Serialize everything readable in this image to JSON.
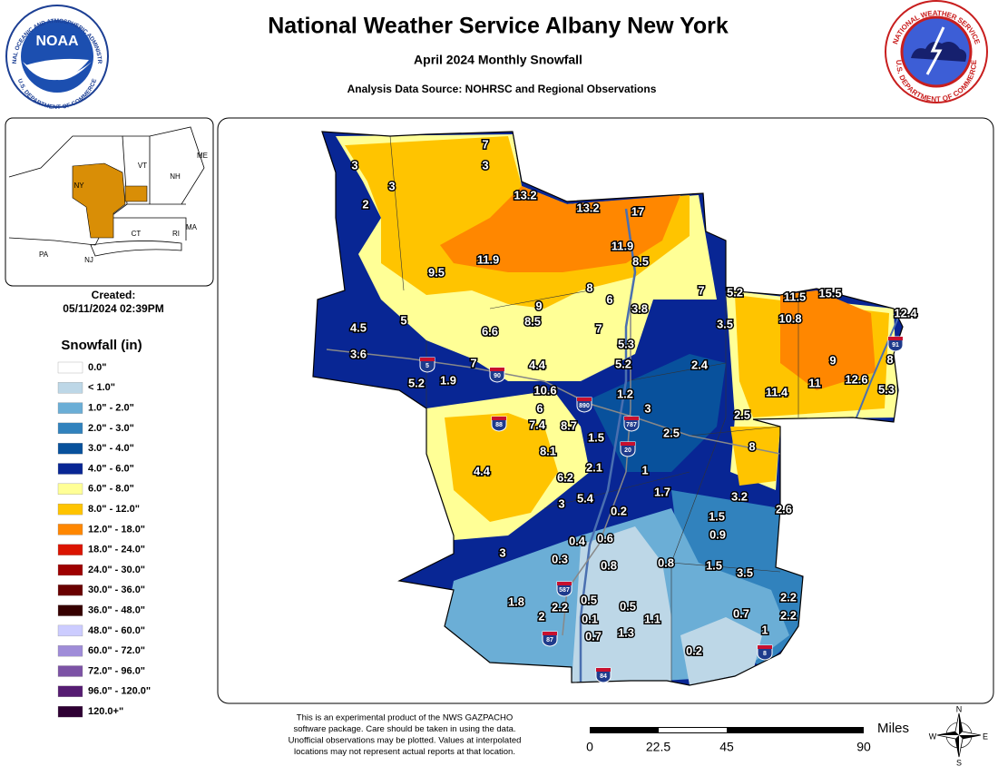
{
  "header": {
    "title": "National Weather Service Albany New York",
    "subtitle": "April 2024 Monthly Snowfall",
    "source": "Analysis Data Source: NOHRSC and Regional Observations"
  },
  "logos": {
    "noaa": {
      "name": "NOAA",
      "ring_top": "NATIONAL OCEANIC AND ATMOSPHERIC ADMINISTRATION",
      "ring_bottom": "U.S. DEPARTMENT OF COMMERCE"
    },
    "nws": {
      "ring_top": "NATIONAL WEATHER SERVICE",
      "ring_bottom": "U.S. DEPARTMENT OF COMMERCE"
    }
  },
  "inset": {
    "states": [
      "VT",
      "NH",
      "ME",
      "NY",
      "MA",
      "CT",
      "RI",
      "PA",
      "NJ"
    ],
    "created_label": "Created:",
    "created": "05/11/2024 02:39PM"
  },
  "legend": {
    "title": "Snowfall (in)",
    "items": [
      {
        "label": "0.0\"",
        "color": "#ffffff"
      },
      {
        "label": "< 1.0\"",
        "color": "#bdd7e7"
      },
      {
        "label": "1.0\" - 2.0\"",
        "color": "#6baed6"
      },
      {
        "label": "2.0\" - 3.0\"",
        "color": "#3182bd"
      },
      {
        "label": "3.0\" - 4.0\"",
        "color": "#08519c"
      },
      {
        "label": "4.0\" - 6.0\"",
        "color": "#082694"
      },
      {
        "label": "6.0\" - 8.0\"",
        "color": "#ffff96"
      },
      {
        "label": "8.0\" - 12.0\"",
        "color": "#ffc400"
      },
      {
        "label": "12.0\" - 18.0\"",
        "color": "#ff8700"
      },
      {
        "label": "18.0\" - 24.0\"",
        "color": "#db1400"
      },
      {
        "label": "24.0\" - 30.0\"",
        "color": "#9e0000"
      },
      {
        "label": "30.0\" - 36.0\"",
        "color": "#690000"
      },
      {
        "label": "36.0\" - 48.0\"",
        "color": "#360000"
      },
      {
        "label": "48.0\" - 60.0\"",
        "color": "#ccccff"
      },
      {
        "label": "60.0\" - 72.0\"",
        "color": "#9f8cd8"
      },
      {
        "label": "72.0\" - 96.0\"",
        "color": "#7c52a5"
      },
      {
        "label": "96.0\" - 120.0\"",
        "color": "#561c72"
      },
      {
        "label": "120.0+\"",
        "color": "#2e0033"
      }
    ]
  },
  "map": {
    "points": [
      7,
      3,
      3,
      3,
      2,
      13.2,
      13.2,
      17,
      11.9,
      8.5,
      9.5,
      11.9,
      9,
      8,
      6,
      3.8,
      7,
      5.2,
      11.5,
      15.5,
      12.4,
      10.8,
      4.5,
      5,
      6.6,
      8.5,
      7,
      3.5,
      5.3,
      3.6,
      9,
      8,
      5.2,
      2.4,
      7,
      4.4,
      5.2,
      1.9,
      11.4,
      11,
      12.6,
      5.3,
      10.6,
      1.2,
      6,
      3,
      2.5,
      7.4,
      8.7,
      2.5,
      1.5,
      8.1,
      8,
      4.4,
      2.1,
      1,
      6.2,
      1.7,
      3.2,
      3,
      5.4,
      0.2,
      2.6,
      1.5,
      0.9,
      0.4,
      0.6,
      3,
      0.3,
      0.8,
      0.8,
      1.5,
      3.5,
      2.2,
      1.8,
      0.5,
      0.5,
      2.2,
      2,
      0.1,
      1.1,
      0.7,
      2.2,
      1,
      0.7,
      1.3,
      0.2
    ],
    "shields": [
      "5",
      "90",
      "890",
      "88",
      "787",
      "20",
      "587",
      "87",
      "84",
      "91",
      "8"
    ]
  },
  "footer": {
    "disclaimer": [
      "This is an experimental product of the NWS GAZPACHO",
      "software package. Care should be taken in using the data.",
      "Unofficial observations may be plotted. Values at interpolated",
      "locations may not represent actual reports at that location."
    ]
  },
  "scale": {
    "unit": "Miles",
    "ticks": [
      0,
      22.5,
      45,
      90
    ]
  },
  "compass": [
    "N",
    "E",
    "S",
    "W"
  ]
}
